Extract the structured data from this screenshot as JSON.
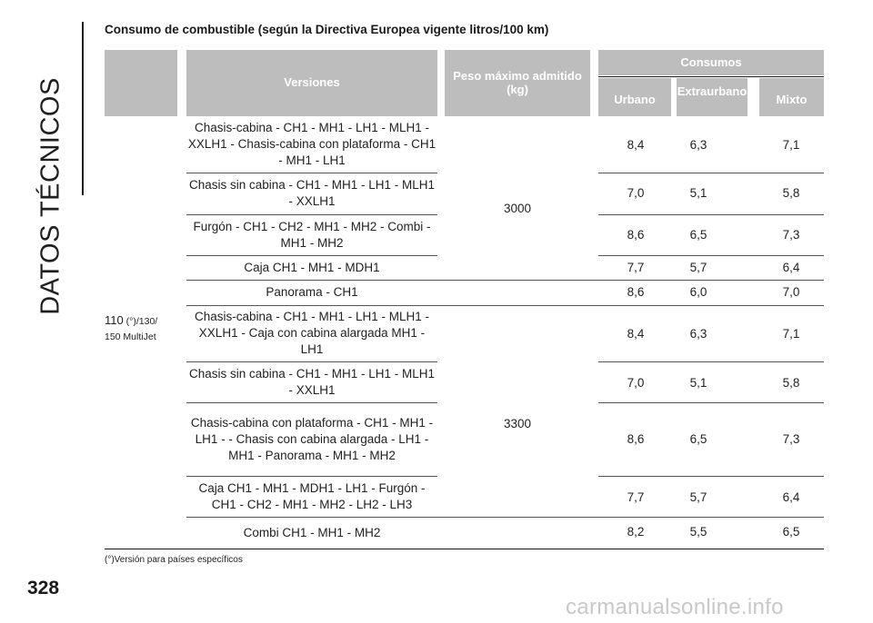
{
  "sidebar": {
    "title": "DATOS TÉCNICOS"
  },
  "heading": "Consumo de combustible (según la Directiva Europea vigente litros/100 km)",
  "table": {
    "header": {
      "versiones": "Versiones",
      "peso": "Peso máximo admitido (kg)",
      "consumos": "Consumos",
      "urbano": "Urbano",
      "extraurbano": "Extraurbano",
      "mixto": "Mixto"
    },
    "version_main": "110",
    "version_mark": " (°)/130/",
    "version_sub": "150 MultiJet",
    "peso_values": [
      "3000",
      "3300"
    ],
    "rows": [
      {
        "desc": "Chasis-cabina - CH1 - MH1 - LH1 - MLH1 - XXLH1 - Chasis-cabina con plataforma - CH1 - MH1 - LH1",
        "urbano": "8,4",
        "extra": "6,3",
        "mixto": "7,1"
      },
      {
        "desc": "Chasis sin cabina - CH1 - MH1 - LH1 - MLH1 - XXLH1",
        "urbano": "7,0",
        "extra": "5,1",
        "mixto": "5,8"
      },
      {
        "desc": "Furgón - CH1 - CH2 - MH1 - MH2 - Combi - MH1 - MH2",
        "urbano": "8,6",
        "extra": "6,5",
        "mixto": "7,3"
      },
      {
        "desc": "Caja CH1 - MH1 - MDH1",
        "urbano": "7,7",
        "extra": "5,7",
        "mixto": "6,4"
      },
      {
        "desc": "Panorama - CH1",
        "urbano": "8,6",
        "extra": "6,0",
        "mixto": "7,0"
      },
      {
        "desc": "Chasis-cabina - CH1 - MH1 - LH1 - MLH1 - XXLH1 - Caja con cabina alargada MH1 - LH1",
        "urbano": "8,4",
        "extra": "6,3",
        "mixto": "7,1"
      },
      {
        "desc": "Chasis sin cabina - CH1 - MH1 - LH1 - MLH1 - XXLH1",
        "urbano": "7,0",
        "extra": "5,1",
        "mixto": "5,8"
      },
      {
        "desc": "Chasis-cabina con plataforma - CH1 - MH1 - LH1 - - Chasis con cabina alargada - LH1 - MH1 - Panorama - MH1 - MH2",
        "urbano": "8,6",
        "extra": "6,5",
        "mixto": "7,3"
      },
      {
        "desc": "Caja CH1 - MH1 - MDH1 - LH1 - Furgón - CH1 - CH2 - MH1 - MH2 - LH2 - LH3",
        "urbano": "7,7",
        "extra": "5,7",
        "mixto": "6,4"
      },
      {
        "desc": "Combi CH1 - MH1 - MH2",
        "urbano": "8,2",
        "extra": "5,5",
        "mixto": "6,5"
      }
    ]
  },
  "footnote": "(°)Versión para países específicos",
  "page_number": "328",
  "watermark": "carmanualsonline.info"
}
